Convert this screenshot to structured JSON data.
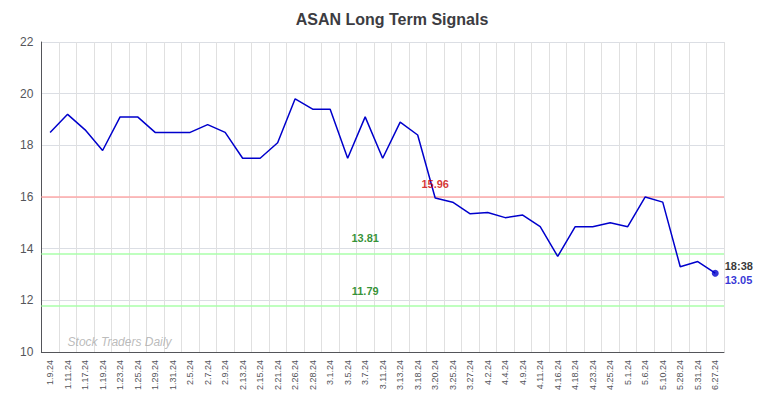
{
  "chart_data": {
    "type": "line",
    "title": "ASAN Long Term Signals",
    "categories": [
      "1.9.24",
      "1.11.24",
      "1.17.24",
      "1.19.24",
      "1.23.24",
      "1.25.24",
      "1.29.24",
      "1.31.24",
      "2.5.24",
      "2.7.24",
      "2.9.24",
      "2.13.24",
      "2.15.24",
      "2.21.24",
      "2.26.24",
      "2.28.24",
      "3.1.24",
      "3.5.24",
      "3.7.24",
      "3.11.24",
      "3.13.24",
      "3.18.24",
      "3.20.24",
      "3.25.24",
      "3.27.24",
      "4.2.24",
      "4.4.24",
      "4.9.24",
      "4.11.24",
      "4.16.24",
      "4.18.24",
      "4.23.24",
      "4.25.24",
      "5.1.24",
      "5.6.24",
      "5.10.24",
      "5.28.24",
      "5.31.24",
      "6.27.24"
    ],
    "values": [
      18.5,
      19.2,
      18.6,
      17.8,
      19.1,
      19.1,
      18.5,
      18.5,
      18.5,
      18.8,
      18.5,
      17.5,
      17.5,
      18.1,
      19.8,
      19.4,
      19.4,
      17.5,
      19.1,
      17.5,
      18.9,
      18.4,
      15.96,
      15.8,
      15.35,
      15.4,
      15.2,
      15.3,
      14.85,
      13.7,
      14.85,
      14.85,
      15.0,
      14.85,
      16.0,
      15.8,
      13.3,
      13.5,
      13.05
    ],
    "color": "#0000cc",
    "ylim": [
      10,
      22
    ],
    "yticks": [
      10,
      12,
      14,
      16,
      18,
      20,
      22
    ],
    "grid": true,
    "hlines": [
      {
        "value": 16.0,
        "color": "#ffaaaa"
      },
      {
        "value": 13.81,
        "color": "#aaffaa"
      },
      {
        "value": 11.79,
        "color": "#aaffaa"
      }
    ],
    "annotations": [
      {
        "text": "15.96",
        "x": "3.20.24",
        "y": 16.25,
        "color": "#cc0000"
      },
      {
        "text": "13.81",
        "x": "3.7.24",
        "y": 14.15,
        "color": "#007700"
      },
      {
        "text": "11.79",
        "x": "3.7.24",
        "y": 12.1,
        "color": "#007700"
      }
    ],
    "last_point": {
      "marker": "circle",
      "label": "18:38",
      "label_color": "#000000",
      "value_label": "13.05",
      "value_color": "#0000cc"
    },
    "watermark": {
      "text": "Stock Traders Daily",
      "x": "1.11.24",
      "y": 10.4,
      "color": "#aaaaaa"
    }
  }
}
